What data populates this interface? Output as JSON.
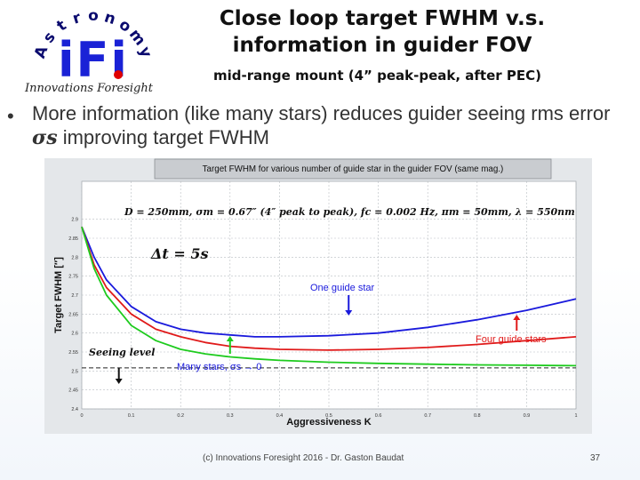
{
  "logo": {
    "letters": [
      "A",
      "s",
      "t",
      "r",
      "o",
      "n",
      "o",
      "m",
      "y"
    ],
    "mark": "iFi",
    "company": "Innovations Foresight",
    "colors": {
      "letters": "#0a0a6e",
      "mark": "#1a22d6",
      "dot": "#e00000"
    }
  },
  "slide": {
    "title_line1": "Close loop target FWHM v.s.",
    "title_line2": "information in guider FOV",
    "subtitle": "mid-range mount (4” peak-peak, after PEC)",
    "bullet_part1": "More information (like many stars) reduces guider seeing rms error ",
    "bullet_symbol": "σs",
    "bullet_part2": " improving target FWHM",
    "footer": "(c) Innovations Foresight 2016 - Dr. Gaston Baudat",
    "page_number": "37"
  },
  "chart_data": {
    "type": "line",
    "title": "Target FWHM for various number of guide star in the guider FOV (same mag.)",
    "xlabel": "Aggressiveness K",
    "ylabel": "Target FWHM [″]",
    "xlim": [
      0,
      1
    ],
    "ylim": [
      2.4,
      3.0
    ],
    "x_ticks": [
      "0",
      "0.1",
      "0.2",
      "0.3",
      "0.4",
      "0.5",
      "0.6",
      "0.7",
      "0.8",
      "0.9",
      "1"
    ],
    "y_ticks": [
      "2.4",
      "2.45",
      "2.5",
      "2.55",
      "2.6",
      "2.65",
      "2.7",
      "2.75",
      "2.8",
      "2.85",
      "2.9"
    ],
    "grid": true,
    "params_text": "D = 250mm, σm = 0.67″ (4″ peak to peak), fc = 0.002 Hz, πm = 50mm, λ = 550nm",
    "dt_text": "Δt = 5s",
    "series": [
      {
        "name": "One guide star",
        "color": "#1a1adc",
        "x": [
          0,
          0.025,
          0.05,
          0.1,
          0.15,
          0.2,
          0.25,
          0.3,
          0.35,
          0.4,
          0.5,
          0.6,
          0.7,
          0.8,
          0.9,
          1.0
        ],
        "y": [
          2.88,
          2.8,
          2.74,
          2.67,
          2.63,
          2.61,
          2.6,
          2.595,
          2.59,
          2.59,
          2.593,
          2.6,
          2.615,
          2.635,
          2.66,
          2.69
        ]
      },
      {
        "name": "Four guide stars",
        "color": "#e01a1a",
        "x": [
          0,
          0.025,
          0.05,
          0.1,
          0.15,
          0.2,
          0.25,
          0.3,
          0.35,
          0.4,
          0.5,
          0.6,
          0.7,
          0.8,
          0.9,
          1.0
        ],
        "y": [
          2.88,
          2.78,
          2.72,
          2.65,
          2.61,
          2.59,
          2.575,
          2.565,
          2.56,
          2.557,
          2.555,
          2.557,
          2.562,
          2.57,
          2.58,
          2.59
        ]
      },
      {
        "name": "Many stars",
        "color": "#1ecb1e",
        "x": [
          0,
          0.025,
          0.05,
          0.1,
          0.15,
          0.2,
          0.25,
          0.3,
          0.35,
          0.4,
          0.5,
          0.6,
          0.7,
          0.8,
          0.9,
          1.0
        ],
        "y": [
          2.88,
          2.77,
          2.7,
          2.62,
          2.58,
          2.557,
          2.545,
          2.537,
          2.532,
          2.528,
          2.523,
          2.52,
          2.518,
          2.516,
          2.515,
          2.514
        ]
      }
    ],
    "seeing_level": 2.508,
    "annotations": {
      "seeing": "Seeing level",
      "one_star": "One guide star",
      "four_stars": "Four guide stars",
      "many_stars": "Many stars, σs → 0"
    },
    "label_colors": {
      "one_star": "#1a1adc",
      "four_stars": "#e01a1a",
      "many_stars": "#1a1adc",
      "arrow_one": "#1a1adc",
      "arrow_four": "#e01a1a",
      "arrow_many": "#1ecb1e"
    }
  }
}
